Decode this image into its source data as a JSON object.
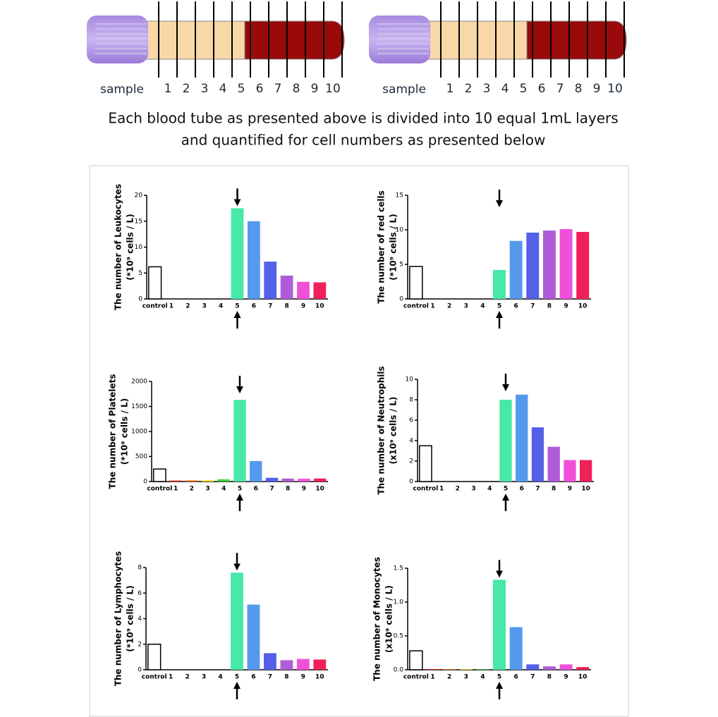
{
  "tubes": [
    {
      "label": "sample",
      "layers": [
        "1",
        "2",
        "3",
        "4",
        "5",
        "6",
        "7",
        "8",
        "9",
        "10"
      ]
    },
    {
      "label": "sample",
      "layers": [
        "1",
        "2",
        "3",
        "4",
        "5",
        "6",
        "7",
        "8",
        "9",
        "10"
      ]
    }
  ],
  "caption": [
    "Each blood tube as presented above is divided into 10 equal 1mL layers",
    "and quantified for cell numbers as presented below"
  ],
  "chart_data": [
    {
      "type": "bar",
      "ylabel": [
        "The number of Leukocytes",
        "(*10⁹ cells / L)"
      ],
      "categories": [
        "control",
        "1",
        "2",
        "3",
        "4",
        "5",
        "6",
        "7",
        "8",
        "9",
        "10"
      ],
      "values": [
        6.2,
        0,
        0,
        0,
        0,
        17.5,
        15,
        7.2,
        4.5,
        3.3,
        3.2
      ],
      "colors": [
        "#ffffff",
        "#f02020",
        "#f08020",
        "#f0e020",
        "#40d040",
        "#48e8a8",
        "#5599ee",
        "#5560e8",
        "#b05cd8",
        "#f050d8",
        "#f0205a"
      ],
      "ylim": [
        0,
        20
      ],
      "yticks": [
        0,
        5,
        10,
        15,
        20
      ]
    },
    {
      "type": "bar",
      "ylabel": [
        "The number of  red cells",
        "(*10⁹ cells / L)"
      ],
      "categories": [
        "control",
        "1",
        "2",
        "3",
        "4",
        "5",
        "6",
        "7",
        "8",
        "9",
        "10"
      ],
      "values": [
        4.7,
        0,
        0,
        0,
        0,
        4.2,
        8.4,
        9.6,
        9.9,
        10.1,
        9.7
      ],
      "colors": [
        "#ffffff",
        "#f02020",
        "#f08020",
        "#f0e020",
        "#40d040",
        "#48e8a8",
        "#5599ee",
        "#5560e8",
        "#b05cd8",
        "#f050d8",
        "#f0205a"
      ],
      "ylim": [
        0,
        15
      ],
      "yticks": [
        0,
        5,
        10,
        15
      ]
    },
    {
      "type": "bar",
      "ylabel": [
        "The number of  Platelets",
        "(*10⁹ cells / L)"
      ],
      "categories": [
        "control",
        "1",
        "2",
        "3",
        "4",
        "5",
        "6",
        "7",
        "8",
        "9",
        "10"
      ],
      "values": [
        250,
        20,
        25,
        25,
        45,
        1630,
        410,
        75,
        60,
        55,
        60
      ],
      "colors": [
        "#ffffff",
        "#f02020",
        "#f08020",
        "#f0e020",
        "#40d040",
        "#48e8a8",
        "#5599ee",
        "#5560e8",
        "#b05cd8",
        "#f050d8",
        "#f0205a"
      ],
      "ylim": [
        0,
        2000
      ],
      "yticks": [
        0,
        500,
        1000,
        1500,
        2000
      ]
    },
    {
      "type": "bar",
      "ylabel": [
        "The number of Neutrophils",
        "(x10⁹ cells / L)"
      ],
      "categories": [
        "control",
        "1",
        "2",
        "3",
        "4",
        "5",
        "6",
        "7",
        "8",
        "9",
        "10"
      ],
      "values": [
        3.5,
        0,
        0,
        0,
        0,
        8.0,
        8.5,
        5.3,
        3.4,
        2.1,
        2.1
      ],
      "colors": [
        "#ffffff",
        "#f02020",
        "#f08020",
        "#f0e020",
        "#40d040",
        "#48e8a8",
        "#5599ee",
        "#5560e8",
        "#b05cd8",
        "#f050d8",
        "#f0205a"
      ],
      "ylim": [
        0,
        10
      ],
      "yticks": [
        0,
        2,
        4,
        6,
        8,
        10
      ]
    },
    {
      "type": "bar",
      "ylabel": [
        "The number of Lymphocytes",
        "(*10⁹ cells / L)"
      ],
      "categories": [
        "control",
        "1",
        "2",
        "3",
        "4",
        "5",
        "6",
        "7",
        "8",
        "9",
        "10"
      ],
      "values": [
        2.0,
        0,
        0,
        0,
        0,
        7.6,
        5.1,
        1.3,
        0.75,
        0.85,
        0.8
      ],
      "colors": [
        "#ffffff",
        "#f02020",
        "#f08020",
        "#f0e020",
        "#40d040",
        "#48e8a8",
        "#5599ee",
        "#5560e8",
        "#b05cd8",
        "#f050d8",
        "#f0205a"
      ],
      "ylim": [
        0,
        8
      ],
      "yticks": [
        0,
        2,
        4,
        6,
        8
      ]
    },
    {
      "type": "bar",
      "ylabel": [
        "The number of Monocytes",
        "(x10⁹ cells / L)"
      ],
      "categories": [
        "control",
        "1",
        "2",
        "3",
        "4",
        "5",
        "6",
        "7",
        "8",
        "9",
        "10"
      ],
      "values": [
        0.28,
        0.01,
        0.01,
        0.01,
        0.01,
        1.33,
        0.63,
        0.08,
        0.05,
        0.08,
        0.04
      ],
      "colors": [
        "#ffffff",
        "#f02020",
        "#f08020",
        "#f0e020",
        "#40d040",
        "#48e8a8",
        "#5599ee",
        "#5560e8",
        "#b05cd8",
        "#f050d8",
        "#f0205a"
      ],
      "ylim": [
        0,
        1.5
      ],
      "yticks": [
        {
          "value": 0,
          "label": "0.0"
        },
        0.5,
        {
          "value": 1,
          "label": "1.0"
        },
        1.5
      ]
    }
  ]
}
